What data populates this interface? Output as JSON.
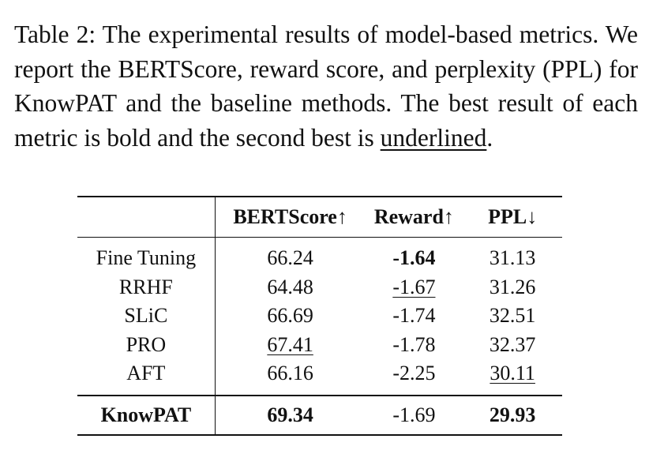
{
  "caption": {
    "text_before": "Table 2: The experimental results of model-based metrics. We report the BERTScore, reward score, and perplexity (PPL) for KnowPAT and the baseline methods. The best result of each metric is bold and the second best is ",
    "underlined_word": "underlined",
    "text_after": "."
  },
  "table": {
    "headers": {
      "method": "",
      "bertscore": "BERTScore↑",
      "reward": "Reward↑",
      "ppl": "PPL↓"
    },
    "baseline_rows": [
      {
        "method": "Fine Tuning",
        "bertscore": "66.24",
        "reward": "-1.64",
        "ppl": "31.13"
      },
      {
        "method": "RRHF",
        "bertscore": "64.48",
        "reward": "-1.67",
        "ppl": "31.26"
      },
      {
        "method": "SLiC",
        "bertscore": "66.69",
        "reward": "-1.74",
        "ppl": "32.51"
      },
      {
        "method": "PRO",
        "bertscore": "67.41",
        "reward": "-1.78",
        "ppl": "32.37"
      },
      {
        "method": "AFT",
        "bertscore": "66.16",
        "reward": "-2.25",
        "ppl": "30.11"
      }
    ],
    "proposed_row": {
      "method": "KnowPAT",
      "bertscore": "69.34",
      "reward": "-1.69",
      "ppl": "29.93"
    }
  }
}
